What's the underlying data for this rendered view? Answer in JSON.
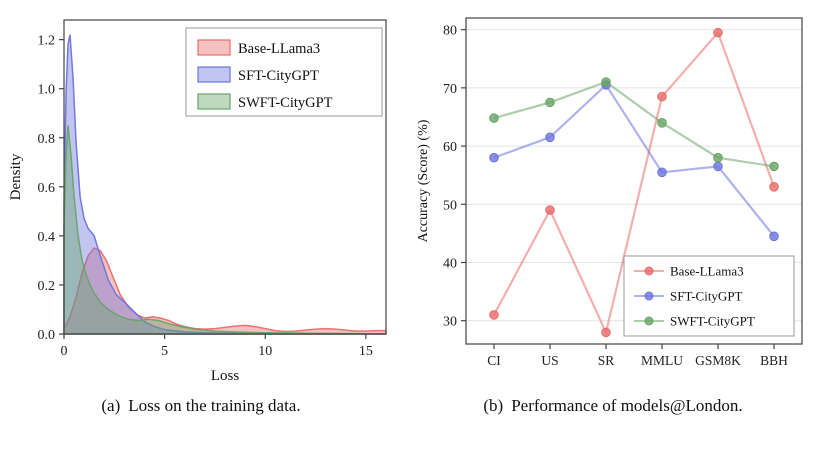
{
  "figure": {
    "background": "#ffffff"
  },
  "captions": {
    "left_label": "(a)",
    "left_text": "Loss on the training data.",
    "right_label": "(b)",
    "right_text": "Performance of models@London."
  },
  "chart_data": [
    {
      "type": "area",
      "kind": "density",
      "title": "",
      "xlabel": "Loss",
      "ylabel": "Density",
      "xlim": [
        0,
        16
      ],
      "ylim": [
        0,
        1.28
      ],
      "xticks": [
        0,
        5,
        10,
        15
      ],
      "yticks": [
        0.0,
        0.2,
        0.4,
        0.6,
        0.8,
        1.0,
        1.2
      ],
      "grid": "off",
      "legend_position": "upper right",
      "series": [
        {
          "name": "Base-LLama3",
          "color": "#e96b6b",
          "x": [
            0,
            0.3,
            0.6,
            0.9,
            1.2,
            1.5,
            1.8,
            2.1,
            2.4,
            2.8,
            3.2,
            3.6,
            4.0,
            4.4,
            4.8,
            5.2,
            5.6,
            6.0,
            6.5,
            7.0,
            7.5,
            8.0,
            8.5,
            9.0,
            9.5,
            10.0,
            10.5,
            11.0,
            11.5,
            12.0,
            12.5,
            13.0,
            13.5,
            14.0,
            14.5,
            15.0,
            15.5,
            16.0
          ],
          "y": [
            0.02,
            0.07,
            0.15,
            0.25,
            0.32,
            0.35,
            0.34,
            0.3,
            0.24,
            0.16,
            0.11,
            0.08,
            0.065,
            0.07,
            0.065,
            0.055,
            0.04,
            0.03,
            0.022,
            0.02,
            0.022,
            0.027,
            0.032,
            0.035,
            0.03,
            0.022,
            0.014,
            0.01,
            0.012,
            0.016,
            0.02,
            0.022,
            0.02,
            0.016,
            0.012,
            0.012,
            0.014,
            0.014
          ]
        },
        {
          "name": "SFT-CityGPT",
          "color": "#6d74dd",
          "x": [
            0,
            0.1,
            0.2,
            0.3,
            0.45,
            0.6,
            0.8,
            1.0,
            1.2,
            1.5,
            1.8,
            2.2,
            2.6,
            3.0,
            3.5,
            4.0,
            4.5,
            5.0,
            6.0,
            7.0,
            8.0,
            10.0,
            12.0,
            16.0
          ],
          "y": [
            0.5,
            0.98,
            1.18,
            1.22,
            1.04,
            0.78,
            0.56,
            0.47,
            0.43,
            0.4,
            0.32,
            0.22,
            0.16,
            0.13,
            0.09,
            0.05,
            0.03,
            0.018,
            0.008,
            0.005,
            0.003,
            0.002,
            0.001,
            0.0
          ]
        },
        {
          "name": "SWFT-CityGPT",
          "color": "#67a567",
          "x": [
            0,
            0.1,
            0.2,
            0.35,
            0.5,
            0.7,
            0.9,
            1.1,
            1.4,
            1.8,
            2.2,
            2.7,
            3.2,
            3.7,
            4.2,
            4.7,
            5.2,
            5.8,
            6.5,
            7.5,
            8.5,
            10.0,
            12.0,
            14.0,
            16.0
          ],
          "y": [
            0.42,
            0.72,
            0.85,
            0.73,
            0.56,
            0.4,
            0.3,
            0.24,
            0.18,
            0.13,
            0.1,
            0.075,
            0.06,
            0.055,
            0.06,
            0.055,
            0.042,
            0.03,
            0.02,
            0.012,
            0.008,
            0.005,
            0.003,
            0.002,
            0.0
          ]
        }
      ]
    },
    {
      "type": "line",
      "title": "",
      "xlabel": "",
      "ylabel": "Accuracy (Score) (%)",
      "categories": [
        "CI",
        "US",
        "SR",
        "MMLU",
        "GSM8K",
        "BBH"
      ],
      "ylim": [
        26,
        82
      ],
      "yticks": [
        30,
        40,
        50,
        60,
        70,
        80
      ],
      "grid": "horizontal",
      "legend_position": "lower right",
      "series": [
        {
          "name": "Base-LLama3",
          "color": "#e96b6b",
          "values": [
            31,
            49,
            28,
            68.5,
            79.5,
            53
          ]
        },
        {
          "name": "SFT-CityGPT",
          "color": "#6d74dd",
          "values": [
            58,
            61.5,
            70.5,
            55.5,
            56.5,
            44.5
          ]
        },
        {
          "name": "SWFT-CityGPT",
          "color": "#67a567",
          "values": [
            64.8,
            67.5,
            71,
            64,
            58,
            56.5
          ]
        }
      ]
    }
  ]
}
